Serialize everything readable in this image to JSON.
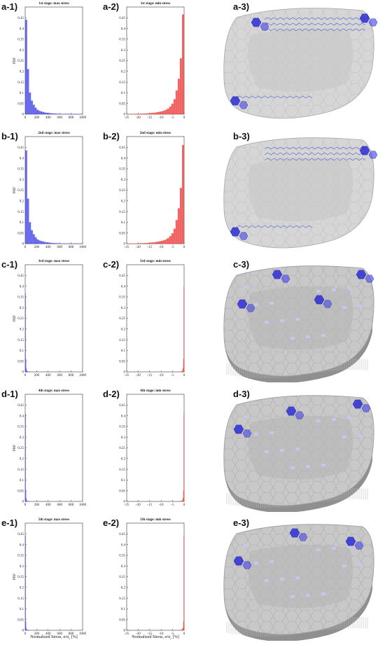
{
  "colors": {
    "max": "#4d4de6",
    "min": "#f04848",
    "surface": "#c8c8c8",
    "edge": "#9a9a9a",
    "hot": "#2b2bd6"
  },
  "xlabel": "Normalized Stress, σ/σ<sub>c</sub> [%]",
  "xlabel_text": "Normalized Stress, σ/σ",
  "xlabel_sub": "c",
  "xlabel_tail": " [%]",
  "rows": [
    {
      "label1": "a-1)",
      "label2": "a-2)",
      "label3": "a-3)",
      "max": {
        "title": "1st stage: max stress",
        "values": [
          0.44,
          0.21,
          0.1,
          0.063,
          0.044,
          0.03,
          0.02,
          0.015,
          0.012,
          0.01,
          0.007,
          0.006,
          0.005,
          0.004,
          0.003,
          0.0025,
          0.002,
          0.0015,
          0.001,
          0.001,
          0.0008,
          0.0006,
          0.0005,
          0.0004,
          0.0003,
          0.0002,
          0.0002,
          0.0001,
          0.0001,
          0.0001
        ]
      },
      "min": {
        "title": "1st stage: min stress",
        "values": [
          0.0005,
          0.0005,
          0.0008,
          0.001,
          0.001,
          0.0015,
          0.002,
          0.002,
          0.003,
          0.003,
          0.004,
          0.005,
          0.006,
          0.007,
          0.009,
          0.011,
          0.013,
          0.016,
          0.02,
          0.026,
          0.035,
          0.048,
          0.07,
          0.11,
          0.165,
          0.26,
          0.465
        ]
      },
      "render": {
        "style": "flat",
        "hot": [
          [
            10,
            310
          ],
          [
            40,
            30
          ],
          [
            195,
            15
          ]
        ]
      }
    },
    {
      "label1": "b-1)",
      "label2": "b-2)",
      "label3": "b-3)",
      "max": {
        "title": "2nd stage: max stress",
        "values": [
          0.435,
          0.21,
          0.1,
          0.063,
          0.044,
          0.03,
          0.02,
          0.015,
          0.012,
          0.01,
          0.007,
          0.006,
          0.005,
          0.004,
          0.003,
          0.0025,
          0.002,
          0.0015,
          0.001,
          0.001,
          0.0008,
          0.0006,
          0.0005,
          0.0004,
          0.0003,
          0.0002,
          0.0002,
          0.0001,
          0.0001,
          0.0001
        ]
      },
      "min": {
        "title": "2nd stage: min stress",
        "values": [
          0.0005,
          0.0005,
          0.0008,
          0.001,
          0.001,
          0.0015,
          0.002,
          0.002,
          0.003,
          0.003,
          0.004,
          0.005,
          0.006,
          0.007,
          0.009,
          0.011,
          0.013,
          0.016,
          0.02,
          0.026,
          0.035,
          0.048,
          0.07,
          0.11,
          0.165,
          0.26,
          0.46
        ]
      },
      "render": {
        "style": "flat",
        "hot": [
          [
            10,
            315
          ],
          [
            195,
            25
          ]
        ]
      }
    },
    {
      "label1": "c-1)",
      "label2": "c-2)",
      "label3": "c-3)",
      "max": {
        "title": "3rd stage: max stress",
        "values": [
          0.365,
          0.06,
          0.018,
          0.008,
          0.004,
          0.002,
          0.001,
          0.0008,
          0.0005,
          0.0003,
          0.0002,
          0.0001
        ]
      },
      "min": {
        "title": "3rd stage: min stress",
        "values": [
          0.0001,
          0.0002,
          0.0003,
          0.0005,
          0.001,
          0.002,
          0.004,
          0.008,
          0.018,
          0.06,
          0.4
        ]
      },
      "render": {
        "style": "block",
        "hot": [
          [
            20,
            115
          ],
          [
            70,
            10
          ],
          [
            190,
            10
          ],
          [
            130,
            100
          ]
        ]
      }
    },
    {
      "label1": "d-1)",
      "label2": "d-2)",
      "label3": "d-3)",
      "max": {
        "title": "4th stage: max stress",
        "values": [
          0.41,
          0.05,
          0.015,
          0.006,
          0.003,
          0.0015,
          0.0008,
          0.0005,
          0.0003,
          0.0002,
          0.0001
        ]
      },
      "min": {
        "title": "4th stage: min stress",
        "values": [
          0.0001,
          0.0002,
          0.0003,
          0.0005,
          0.001,
          0.002,
          0.004,
          0.008,
          0.015,
          0.05,
          0.41
        ]
      },
      "render": {
        "style": "block",
        "hot": [
          [
            15,
            100
          ],
          [
            185,
            10
          ],
          [
            90,
            35
          ]
        ]
      }
    },
    {
      "label1": "e-1)",
      "label2": "e-2)",
      "label3": "e-3)",
      "max": {
        "title": "5th stage: max stress",
        "values": [
          0.44,
          0.04,
          0.01,
          0.004,
          0.002,
          0.001,
          0.0005,
          0.0003,
          0.0002,
          0.0001
        ]
      },
      "min": {
        "title": "5th stage: min stress",
        "values": [
          0.0001,
          0.0002,
          0.0003,
          0.0005,
          0.001,
          0.002,
          0.004,
          0.008,
          0.012,
          0.04,
          0.44
        ]
      },
      "render": {
        "style": "block",
        "hot": [
          [
            15,
            110
          ],
          [
            95,
            10
          ],
          [
            175,
            40
          ]
        ]
      }
    }
  ],
  "chart_data": [
    {
      "type": "bar",
      "title": "1st stage: max stress",
      "ylabel": "PDF",
      "xlim": [
        0,
        1000
      ],
      "ylim": [
        0,
        0.5
      ],
      "xticks": [
        0,
        200,
        400,
        600,
        800,
        1000
      ],
      "yticks": [
        0,
        0.05,
        0.1,
        0.15,
        0.2,
        0.25,
        0.3,
        0.35,
        0.4,
        0.45
      ],
      "bin_width": 33.3,
      "values": [
        0.44,
        0.21,
        0.1,
        0.063,
        0.044,
        0.03,
        0.02,
        0.015,
        0.012,
        0.01,
        0.007,
        0.006,
        0.005,
        0.004,
        0.003,
        0.0025,
        0.002,
        0.0015,
        0.001,
        0.001,
        0.0008,
        0.0006,
        0.0005,
        0.0004,
        0.0003,
        0.0002,
        0.0002,
        0.0001,
        0.0001,
        0.0001
      ]
    },
    {
      "type": "bar",
      "title": "1st stage: min stress",
      "xlim": [
        -25,
        0
      ],
      "ylim": [
        0,
        0.5
      ],
      "xticks": [
        -25,
        -20,
        -15,
        -10,
        -5,
        0
      ],
      "yticks": [
        0,
        0.05,
        0.1,
        0.15,
        0.2,
        0.25,
        0.3,
        0.35,
        0.4,
        0.45
      ],
      "bin_width": 0.925,
      "values": [
        0.0005,
        0.0005,
        0.0008,
        0.001,
        0.001,
        0.0015,
        0.002,
        0.002,
        0.003,
        0.003,
        0.004,
        0.005,
        0.006,
        0.007,
        0.009,
        0.011,
        0.013,
        0.016,
        0.02,
        0.026,
        0.035,
        0.048,
        0.07,
        0.11,
        0.165,
        0.26,
        0.465
      ]
    },
    {
      "type": "bar",
      "title": "2nd stage: max stress",
      "ylabel": "PDF",
      "xlim": [
        0,
        1000
      ],
      "ylim": [
        0,
        0.5
      ],
      "bin_width": 33.3,
      "values": [
        0.435,
        0.21,
        0.1,
        0.063,
        0.044,
        0.03,
        0.02,
        0.015,
        0.012,
        0.01,
        0.007,
        0.006,
        0.005,
        0.004,
        0.003,
        0.0025,
        0.002,
        0.0015,
        0.001,
        0.001,
        0.0008,
        0.0006,
        0.0005,
        0.0004,
        0.0003,
        0.0002,
        0.0002,
        0.0001,
        0.0001,
        0.0001
      ]
    },
    {
      "type": "bar",
      "title": "2nd stage: min stress",
      "xlim": [
        -25,
        0
      ],
      "ylim": [
        0,
        0.5
      ],
      "bin_width": 0.925,
      "values": [
        0.0005,
        0.0005,
        0.0008,
        0.001,
        0.001,
        0.0015,
        0.002,
        0.002,
        0.003,
        0.003,
        0.004,
        0.005,
        0.006,
        0.007,
        0.009,
        0.011,
        0.013,
        0.016,
        0.02,
        0.026,
        0.035,
        0.048,
        0.07,
        0.11,
        0.165,
        0.26,
        0.46
      ]
    },
    {
      "type": "bar",
      "title": "3rd stage: max stress",
      "ylabel": "PDF",
      "xlim": [
        0,
        1000
      ],
      "ylim": [
        0,
        0.5
      ],
      "bin_width": 7,
      "values": [
        0.365,
        0.06,
        0.018,
        0.008,
        0.004,
        0.002,
        0.001,
        0.0008,
        0.0005,
        0.0003,
        0.0002,
        0.0001
      ]
    },
    {
      "type": "bar",
      "title": "3rd stage: min stress",
      "xlim": [
        -25,
        0
      ],
      "ylim": [
        0,
        0.5
      ],
      "bin_width": 0.2,
      "values": [
        0.0001,
        0.0002,
        0.0003,
        0.0005,
        0.001,
        0.002,
        0.004,
        0.008,
        0.018,
        0.06,
        0.4
      ]
    },
    {
      "type": "bar",
      "title": "4th stage: max stress",
      "ylabel": "PDF",
      "xlim": [
        0,
        1000
      ],
      "ylim": [
        0,
        0.5
      ],
      "bin_width": 7,
      "values": [
        0.41,
        0.05,
        0.015,
        0.006,
        0.003,
        0.0015,
        0.0008,
        0.0005,
        0.0003,
        0.0002,
        0.0001
      ]
    },
    {
      "type": "bar",
      "title": "4th stage: min stress",
      "xlim": [
        -25,
        0
      ],
      "ylim": [
        0,
        0.5
      ],
      "bin_width": 0.2,
      "values": [
        0.0001,
        0.0002,
        0.0003,
        0.0005,
        0.001,
        0.002,
        0.004,
        0.008,
        0.015,
        0.05,
        0.41
      ]
    },
    {
      "type": "bar",
      "title": "5th stage: max stress",
      "ylabel": "PDF",
      "xlabel": "Normalized Stress, σ/σc [%]",
      "xlim": [
        0,
        1000
      ],
      "ylim": [
        0,
        0.5
      ],
      "bin_width": 7,
      "values": [
        0.44,
        0.04,
        0.01,
        0.004,
        0.002,
        0.001,
        0.0005,
        0.0003,
        0.0002,
        0.0001
      ]
    },
    {
      "type": "bar",
      "title": "5th stage: min stress",
      "xlabel": "Normalized Stress, σ/σc [%]",
      "xlim": [
        -25,
        0
      ],
      "ylim": [
        0,
        0.5
      ],
      "bin_width": 0.2,
      "values": [
        0.0001,
        0.0002,
        0.0003,
        0.0005,
        0.001,
        0.002,
        0.004,
        0.008,
        0.012,
        0.04,
        0.44
      ]
    }
  ],
  "axes": {
    "max": {
      "xlim": [
        0,
        1000
      ],
      "xticks": [
        "0",
        "200",
        "400",
        "600",
        "800",
        "1000"
      ]
    },
    "min": {
      "xlim": [
        -25,
        0
      ],
      "xticks": [
        "-25",
        "-20",
        "-15",
        "-10",
        "-5",
        "0"
      ]
    },
    "ylim": [
      0,
      0.5
    ],
    "yticks": [
      "0",
      "0.05",
      "0.1",
      "0.15",
      "0.2",
      "0.25",
      "0.3",
      "0.35",
      "0.4",
      "0.45"
    ],
    "ylabel": "PDF"
  }
}
